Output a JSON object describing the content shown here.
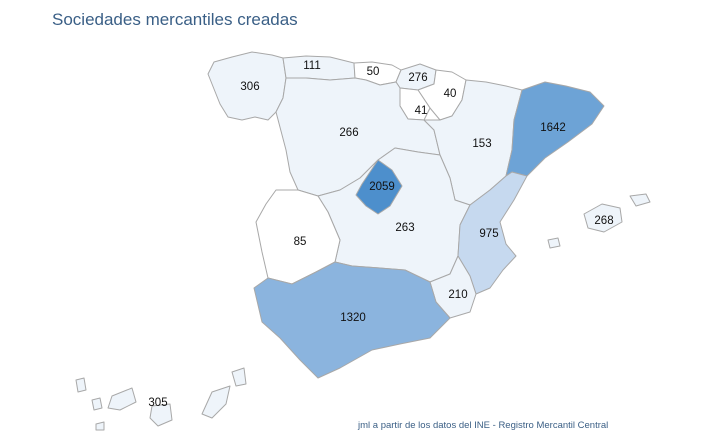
{
  "title": "Sociedades mercantiles creadas",
  "source": "jml a partir de los datos del INE - Registro Mercantil Central",
  "colors": {
    "background": "#ffffff",
    "border": "#a8a8a8",
    "title": "#3a5f86",
    "scale": [
      "#ffffff",
      "#eef4fa",
      "#c6d9ef",
      "#a3c4e6",
      "#8bb4de",
      "#6da3d6",
      "#4d8fcc"
    ]
  },
  "regions": [
    {
      "id": "galicia",
      "name": "Galicia",
      "value": 306
    },
    {
      "id": "asturias",
      "name": "Asturias",
      "value": 111
    },
    {
      "id": "cantabria",
      "name": "Cantabria",
      "value": 50
    },
    {
      "id": "pais-vasco",
      "name": "País Vasco",
      "value": 276
    },
    {
      "id": "navarra",
      "name": "Navarra",
      "value": 40
    },
    {
      "id": "la-rioja",
      "name": "La Rioja",
      "value": 41
    },
    {
      "id": "castilla-leon",
      "name": "Castilla y León",
      "value": 266
    },
    {
      "id": "aragon",
      "name": "Aragón",
      "value": 153
    },
    {
      "id": "cataluna",
      "name": "Cataluña",
      "value": 1642
    },
    {
      "id": "madrid",
      "name": "Madrid",
      "value": 2059
    },
    {
      "id": "castilla-la-mancha",
      "name": "Castilla-La Mancha",
      "value": 263
    },
    {
      "id": "extremadura",
      "name": "Extremadura",
      "value": 85
    },
    {
      "id": "valencia",
      "name": "Comunidad Valenciana",
      "value": 975
    },
    {
      "id": "baleares",
      "name": "Islas Baleares",
      "value": 268
    },
    {
      "id": "murcia",
      "name": "Murcia",
      "value": 210
    },
    {
      "id": "andalucia",
      "name": "Andalucía",
      "value": 1320
    },
    {
      "id": "canarias",
      "name": "Canarias",
      "value": 305
    }
  ]
}
